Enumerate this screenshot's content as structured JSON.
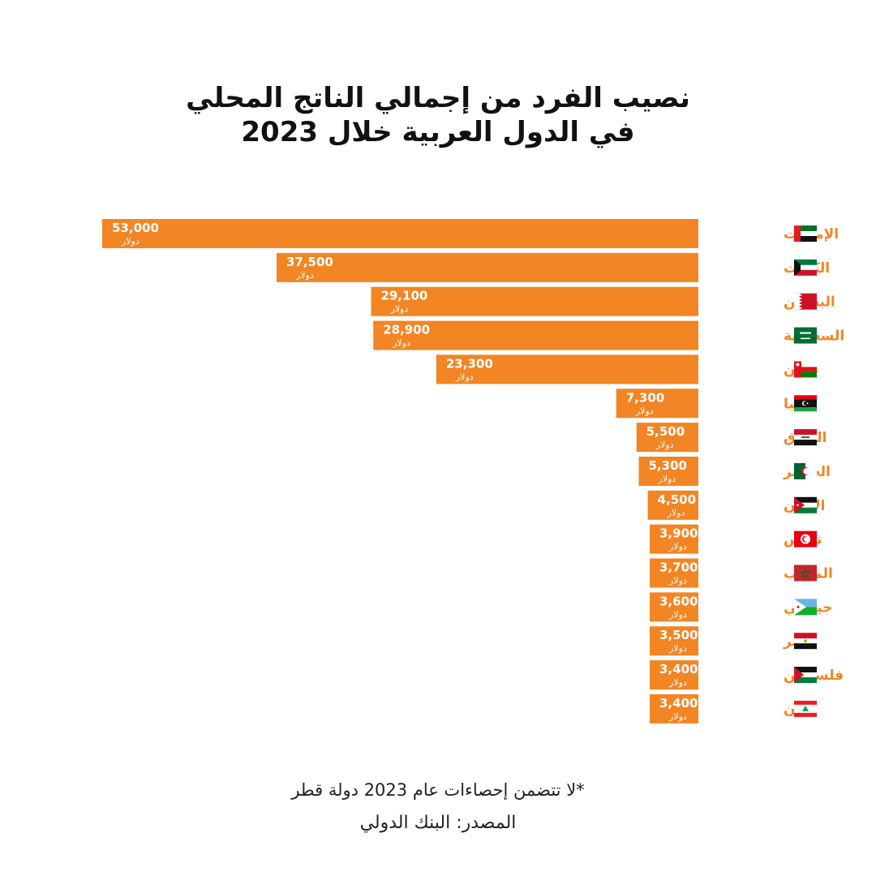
{
  "title_line1": "نصيب الفرد من إجمالي الناتج المحلي",
  "title_line2": "في الدول العربية خلال 2023",
  "note": "*لا تتضمن إحصاءات عام 2023 دولة قطر",
  "source": "المصدر: البنك الدولي",
  "colors": {
    "bar": "#F28524",
    "label": "#F28524",
    "value_text": "#ffffff"
  },
  "chart_data": {
    "type": "bar",
    "orientation": "horizontal",
    "categories": [
      "الإمارات",
      "الكويت",
      "البحرين",
      "السعودية",
      "عمان",
      "ليبيا",
      "العراق",
      "الجزائر",
      "الأردن",
      "تونس",
      "المغرب",
      "جيبوتي",
      "مصر",
      "فلسطين",
      "لبنان"
    ],
    "values": [
      53000,
      37500,
      29100,
      28900,
      23300,
      7300,
      5500,
      5300,
      4500,
      3900,
      3700,
      3600,
      3500,
      3400,
      3400
    ],
    "value_labels": [
      "53,000",
      "37,500",
      "29,100",
      "28,900",
      "23,300",
      "7,300",
      "5,500",
      "5,300",
      "4,500",
      "3,900",
      "3,700",
      "3,600",
      "3,500",
      "3,400",
      "3,400"
    ],
    "unit_label": "دولار",
    "flag_icons": [
      "uae-flag-icon",
      "kuwait-flag-icon",
      "bahrain-flag-icon",
      "saudi-flag-icon",
      "oman-flag-icon",
      "libya-flag-icon",
      "iraq-flag-icon",
      "algeria-flag-icon",
      "jordan-flag-icon",
      "tunisia-flag-icon",
      "morocco-flag-icon",
      "djibouti-flag-icon",
      "egypt-flag-icon",
      "palestine-flag-icon",
      "lebanon-flag-icon"
    ],
    "bar_direction": "right-to-left",
    "xlim": [
      0,
      53000
    ],
    "grid": false,
    "legend": "none"
  }
}
